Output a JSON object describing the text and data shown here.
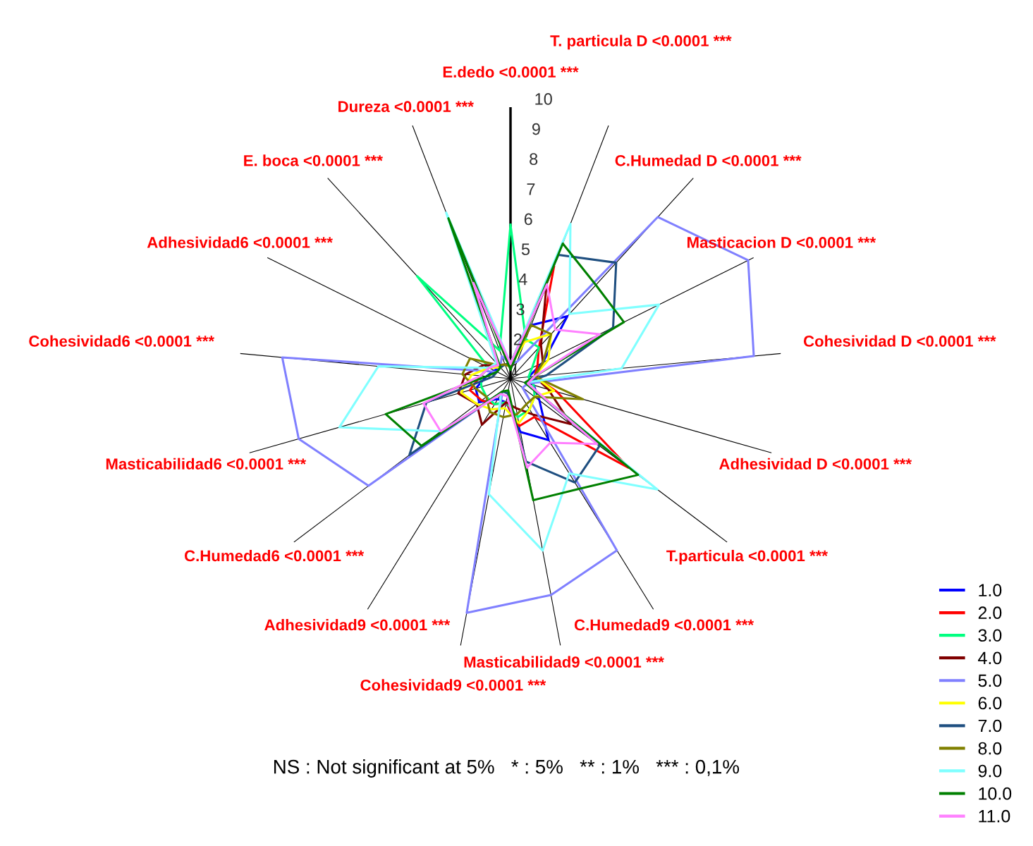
{
  "chart_data": {
    "type": "radar",
    "categories": [
      "E.dedo <0.0001 ***",
      "T. particula D <0.0001 ***",
      "C.Humedad D <0.0001 ***",
      "Masticacion D <0.0001 ***",
      "Cohesividad D <0.0001 ***",
      "Adhesividad D <0.0001 ***",
      "T.particula <0.0001 ***",
      "C.Humedad9 <0.0001 ***",
      "Masticabilidad9 <0.0001 ***",
      "Cohesividad9 <0.0001 ***",
      "Adhesividad9 <0.0001 ***",
      "C.Humedad6 <0.0001 ***",
      "Masticabilidad6 <0.0001 ***",
      "Cohesividad6 <0.0001 ***",
      "Adhesividad6 <0.0001 ***",
      "E. boca <0.0001 ***",
      "Dureza <0.0001 ***"
    ],
    "series": [
      {
        "name": "1.0",
        "color": "#0000ff",
        "values": [
          1.5,
          2.9,
          3.8,
          2.2,
          1.6,
          1.8,
          2.2,
          3.4,
          2.8,
          1.8,
          1.8,
          2.3,
          2.2,
          1.8,
          1.6,
          1.5,
          1.5
        ]
      },
      {
        "name": "2.0",
        "color": "#ff0000",
        "values": [
          1.5,
          5.0,
          2.4,
          2.0,
          1.8,
          2.6,
          5.9,
          2.5,
          2.6,
          1.8,
          2.0,
          2.2,
          2.4,
          2.0,
          1.8,
          1.6,
          1.5
        ]
      },
      {
        "name": "3.0",
        "color": "#00ff80",
        "values": [
          6.1,
          2.4,
          2.4,
          1.8,
          1.6,
          1.8,
          2.0,
          2.2,
          2.3,
          1.8,
          2.0,
          2.0,
          2.0,
          2.0,
          1.8,
          5.6,
          2.0
        ]
      },
      {
        "name": "4.0",
        "color": "#800000",
        "values": [
          1.5,
          4.3,
          2.5,
          2.2,
          1.8,
          2.3,
          3.5,
          2.4,
          2.0,
          1.8,
          2.8,
          2.4,
          2.8,
          2.5,
          2.0,
          1.6,
          1.5
        ]
      },
      {
        "name": "5.0",
        "color": "#8080ff",
        "values": [
          1.5,
          1.6,
          8.25,
          9.8,
          9.1,
          1.6,
          1.5,
          7.7,
          8.3,
          8.9,
          1.5,
          6.9,
          8.3,
          8.6,
          1.5,
          1.5,
          1.8
        ]
      },
      {
        "name": "6.0",
        "color": "#ffff00",
        "values": [
          1.4,
          2.3,
          3.0,
          2.4,
          1.8,
          2.5,
          2.0,
          2.2,
          2.5,
          2.0,
          2.2,
          2.4,
          2.7,
          2.3,
          1.8,
          1.5,
          1.5
        ]
      },
      {
        "name": "7.0",
        "color": "#1f4f80",
        "values": [
          1.5,
          5.4,
          6.2,
          4.8,
          2.2,
          1.5,
          4.7,
          5.05,
          3.8,
          1.5,
          1.5,
          5.2,
          3.9,
          1.6,
          1.5,
          1.5,
          1.5
        ]
      },
      {
        "name": "8.0",
        "color": "#808000",
        "values": [
          1.4,
          2.9,
          3.0,
          2.2,
          1.8,
          3.5,
          2.0,
          2.0,
          2.2,
          2.3,
          2.3,
          2.0,
          2.2,
          2.6,
          2.5,
          1.6,
          1.5
        ]
      },
      {
        "name": "9.0",
        "color": "#80ffff",
        "values": [
          1.5,
          6.5,
          3.9,
          6.5,
          4.7,
          1.5,
          7.1,
          4.7,
          6.8,
          4.9,
          1.6,
          3.9,
          6.9,
          5.4,
          1.8,
          1.7,
          6.9
        ]
      },
      {
        "name": "10.0",
        "color": "#008000",
        "values": [
          1.3,
          5.8,
          5.2,
          5.2,
          1.8,
          1.5,
          6.3,
          5.3,
          5.1,
          1.4,
          1.5,
          4.7,
          5.3,
          1.8,
          1.5,
          1.5,
          6.7
        ]
      },
      {
        "name": "11.0",
        "color": "#ff80ff",
        "values": [
          1.5,
          4.35,
          3.2,
          4.3,
          1.8,
          1.6,
          4.6,
          3.5,
          4.0,
          1.6,
          1.6,
          3.9,
          4.0,
          2.0,
          1.8,
          1.6,
          4.4
        ]
      }
    ],
    "ylim": [
      1,
      10
    ],
    "yticks": [
      1,
      2,
      3,
      4,
      5,
      6,
      7,
      8,
      9,
      10
    ],
    "grid": "x",
    "legend": "bottom right",
    "annotations": [
      "NS : Not significant at 5%   * : 5%   ** : 1%   *** : 0,1%"
    ]
  }
}
